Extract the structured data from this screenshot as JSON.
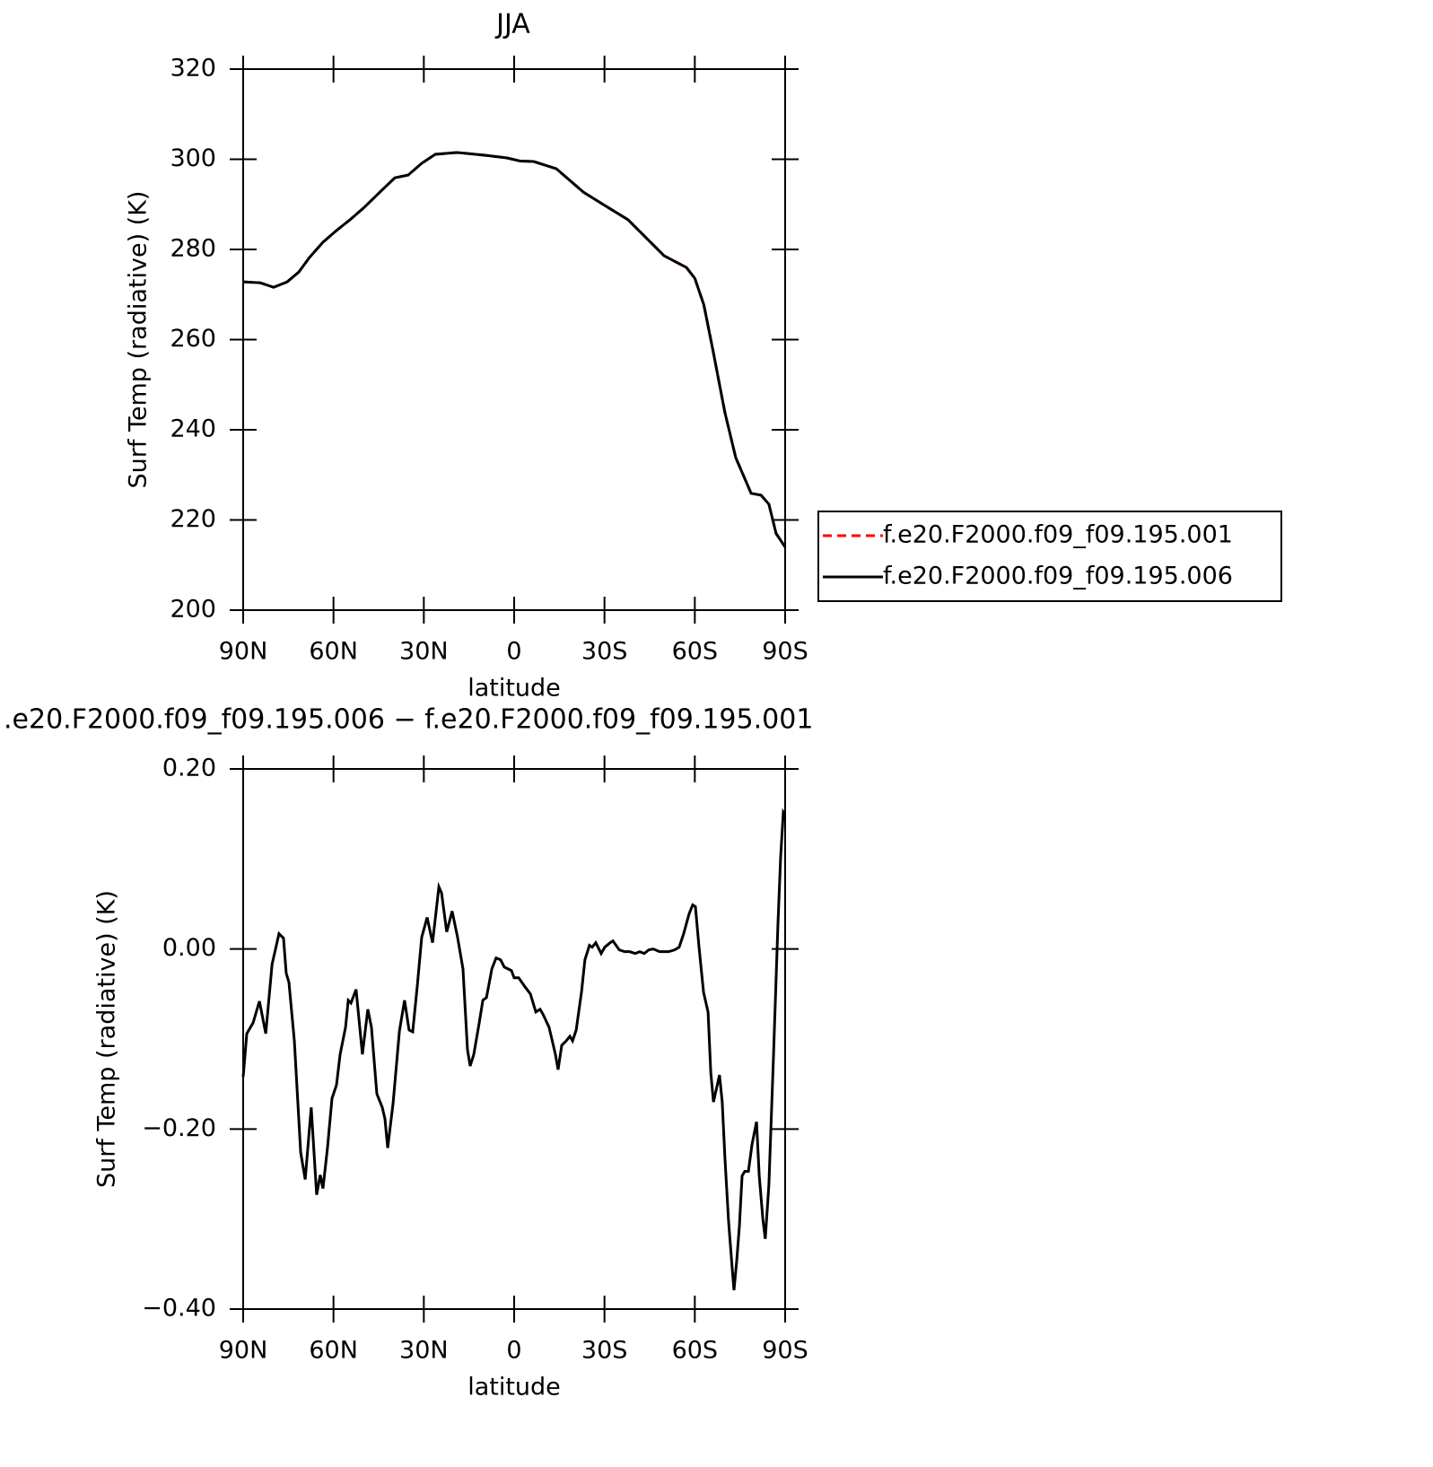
{
  "chart_data": [
    {
      "type": "line",
      "title": "JJA",
      "xlabel": "latitude",
      "ylabel": "Surf Temp (radiative) (K)",
      "x": [
        90,
        84.3,
        79.9,
        75.4,
        71.5,
        68,
        63.5,
        59,
        54.5,
        50,
        44,
        39.6,
        35.2,
        30.7,
        26.2,
        18.8,
        9.8,
        2.4,
        -2,
        -6.5,
        -14,
        -23,
        -29.5,
        -37.8,
        -49.8,
        -57.2,
        -60,
        -63,
        -66,
        -70,
        -73.6,
        -78.7,
        -82,
        -84.6,
        -87,
        -90
      ],
      "series": [
        {
          "name": "f.e20.F2000.f09_f09.195.001",
          "color": "#ff0000",
          "linestyle": "dashed",
          "values": [
            272.8,
            272.6,
            271.6,
            272.8,
            275,
            278.2,
            281.6,
            284.2,
            286.6,
            289.2,
            293.1,
            295.9,
            296.5,
            299.1,
            301.1,
            301.5,
            300.9,
            300.3,
            299.6,
            299.5,
            297.9,
            292.7,
            290,
            286.6,
            278.6,
            276,
            273.6,
            267.7,
            257.7,
            243.8,
            233.8,
            225.9,
            225.5,
            223.5,
            217,
            214
          ]
        },
        {
          "name": "f.e20.F2000.f09_f09.195.006",
          "color": "#000000",
          "linestyle": "solid",
          "values": [
            272.8,
            272.6,
            271.6,
            272.8,
            275,
            278.2,
            281.6,
            284.2,
            286.6,
            289.2,
            293.1,
            295.9,
            296.5,
            299.1,
            301.1,
            301.5,
            300.9,
            300.3,
            299.6,
            299.5,
            297.9,
            292.7,
            290,
            286.6,
            278.6,
            276,
            273.6,
            267.7,
            257.7,
            243.8,
            233.8,
            225.9,
            225.5,
            223.5,
            217,
            214
          ]
        }
      ],
      "xlim": [
        90,
        -90
      ],
      "xticks": [
        {
          "value": 90,
          "label": "90N"
        },
        {
          "value": 60,
          "label": "60N"
        },
        {
          "value": 30,
          "label": "30N"
        },
        0,
        {
          "value": -30,
          "label": "30S"
        },
        {
          "value": -60,
          "label": "60S"
        },
        {
          "value": -90,
          "label": "90S"
        }
      ],
      "ylim": [
        200,
        320
      ],
      "yticks": [
        200,
        220,
        240,
        260,
        280,
        300,
        320
      ],
      "legend": "right"
    },
    {
      "type": "line",
      "title": ".e20.F2000.f09_f09.195.006 − f.e20.F2000.f09_f09.195.001",
      "xlabel": "latitude",
      "ylabel": "Surf Temp (radiative) (K)",
      "x": [
        90,
        88.8,
        86.7,
        84.6,
        82.5,
        80.4,
        78.1,
        76.6,
        75.7,
        74.8,
        73,
        70.9,
        69.4,
        67.4,
        65.6,
        64.4,
        63.5,
        62,
        60.5,
        59,
        57.8,
        56,
        55.1,
        54.2,
        52.5,
        50.4,
        48.6,
        47.4,
        45.6,
        43.8,
        42.9,
        42,
        40.2,
        38.1,
        36.4,
        34.9,
        33.7,
        32.2,
        30.7,
        28.9,
        27.1,
        25,
        24.1,
        22.4,
        20.6,
        18.8,
        17,
        15.5,
        14.6,
        13.4,
        11.6,
        10.4,
        9.2,
        7.4,
        6,
        4.5,
        3.3,
        0.9,
        0,
        -1.5,
        -3.6,
        -5.4,
        -7.2,
        -8.6,
        -9.5,
        -11.6,
        -13.7,
        -14.6,
        -15.8,
        -17.3,
        -18.5,
        -19.4,
        -20.6,
        -22.4,
        -23.5,
        -25,
        -25.9,
        -27.1,
        -28.9,
        -30.1,
        -31.9,
        -32.8,
        -34.9,
        -36.7,
        -38.4,
        -40.2,
        -41.7,
        -43.2,
        -44.7,
        -46.2,
        -48.3,
        -51.3,
        -53.3,
        -54.8,
        -56.3,
        -58.1,
        -59.3,
        -60.2,
        -61.4,
        -62.9,
        -64.4,
        -65.3,
        -66.2,
        -67.4,
        -68.2,
        -69.1,
        -70,
        -71.2,
        -72.4,
        -73,
        -73.9,
        -74.8,
        -75.7,
        -76.6,
        -77.8,
        -79,
        -80.5,
        -81.4,
        -82.6,
        -83.4,
        -84.6,
        -86.1,
        -87.6,
        -88.5,
        -89.4,
        -90
      ],
      "series": [
        {
          "color": "#000000",
          "linestyle": "solid",
          "values": [
            -0.142,
            -0.094,
            -0.082,
            -0.058,
            -0.094,
            -0.017,
            0.017,
            0.012,
            -0.027,
            -0.037,
            -0.102,
            -0.226,
            -0.256,
            -0.176,
            -0.273,
            -0.251,
            -0.266,
            -0.221,
            -0.166,
            -0.151,
            -0.117,
            -0.087,
            -0.057,
            -0.06,
            -0.045,
            -0.117,
            -0.067,
            -0.087,
            -0.161,
            -0.176,
            -0.189,
            -0.221,
            -0.171,
            -0.091,
            -0.057,
            -0.09,
            -0.092,
            -0.042,
            0.013,
            0.035,
            0.007,
            0.069,
            0.062,
            0.019,
            0.042,
            0.013,
            -0.022,
            -0.112,
            -0.13,
            -0.117,
            -0.082,
            -0.057,
            -0.054,
            -0.022,
            -0.01,
            -0.012,
            -0.02,
            -0.024,
            -0.032,
            -0.032,
            -0.042,
            -0.05,
            -0.07,
            -0.067,
            -0.072,
            -0.087,
            -0.117,
            -0.134,
            -0.107,
            -0.102,
            -0.097,
            -0.102,
            -0.09,
            -0.047,
            -0.012,
            0.004,
            0.002,
            0.007,
            -0.005,
            0.002,
            0.007,
            0.009,
            -0.001,
            -0.003,
            -0.003,
            -0.005,
            -0.003,
            -0.005,
            -0.001,
            0,
            -0.003,
            -0.003,
            -0.001,
            0.002,
            0.017,
            0.039,
            0.049,
            0.047,
            0.002,
            -0.048,
            -0.07,
            -0.137,
            -0.17,
            -0.152,
            -0.14,
            -0.17,
            -0.232,
            -0.302,
            -0.354,
            -0.379,
            -0.347,
            -0.308,
            -0.252,
            -0.247,
            -0.247,
            -0.217,
            -0.192,
            -0.252,
            -0.3,
            -0.322,
            -0.262,
            -0.122,
            0.027,
            0.102,
            0.152,
            0.149
          ]
        }
      ],
      "xlim": [
        90,
        -90
      ],
      "xticks": [
        {
          "value": 90,
          "label": "90N"
        },
        {
          "value": 60,
          "label": "60N"
        },
        {
          "value": 30,
          "label": "30N"
        },
        0,
        {
          "value": -30,
          "label": "30S"
        },
        {
          "value": -60,
          "label": "60S"
        },
        {
          "value": -90,
          "label": "90S"
        }
      ],
      "ylim": [
        -0.4,
        0.2
      ],
      "yticks": [
        {
          "value": -0.4,
          "label": "−0.40"
        },
        {
          "value": -0.2,
          "label": "−0.20"
        },
        {
          "value": 0,
          "label": "0.00"
        },
        {
          "value": 0.2,
          "label": "0.20"
        }
      ]
    }
  ]
}
